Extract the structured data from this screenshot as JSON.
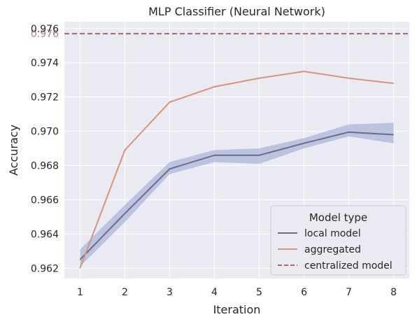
{
  "chart_data": {
    "type": "line",
    "title": "MLP Classifier (Neural Network)",
    "xlabel": "Iteration",
    "ylabel": "Accuracy",
    "x": [
      1,
      2,
      3,
      4,
      5,
      6,
      7,
      8
    ],
    "xlim": [
      0.65,
      8.35
    ],
    "ylim": [
      0.9614,
      0.9764
    ],
    "yticks": [
      0.962,
      0.964,
      0.966,
      0.968,
      0.97,
      0.972,
      0.974,
      0.976
    ],
    "ytick_labels": [
      "0.962",
      "0.964",
      "0.966",
      "0.968",
      "0.970",
      "0.972",
      "0.974",
      "0.976"
    ],
    "xtick_labels": [
      "1",
      "2",
      "3",
      "4",
      "5",
      "6",
      "7",
      "8"
    ],
    "grid": true,
    "background": "#eaeaf2",
    "series": [
      {
        "name": "local model",
        "color": "#6f6c85",
        "values": [
          0.9625,
          0.9652,
          0.9678,
          0.9686,
          0.9686,
          0.9693,
          0.96995,
          0.9698
        ],
        "ci_low": [
          0.9621,
          0.9647,
          0.9675,
          0.9682,
          0.9681,
          0.969,
          0.9697,
          0.9693
        ],
        "ci_high": [
          0.9631,
          0.9657,
          0.9682,
          0.9689,
          0.969,
          0.9696,
          0.9704,
          0.9705
        ],
        "ci_color": "#9fadd4"
      },
      {
        "name": "aggregated",
        "color": "#d9927b",
        "values": [
          0.962,
          0.9689,
          0.9717,
          0.9726,
          0.9731,
          0.9735,
          0.9731,
          0.9728
        ]
      }
    ],
    "reference_line": {
      "name": "centralized model",
      "value": 0.9757,
      "label": "0.976",
      "color": "#b06565",
      "style": "dashed"
    },
    "legend": {
      "title": "Model type",
      "placement": "lower-right"
    }
  }
}
